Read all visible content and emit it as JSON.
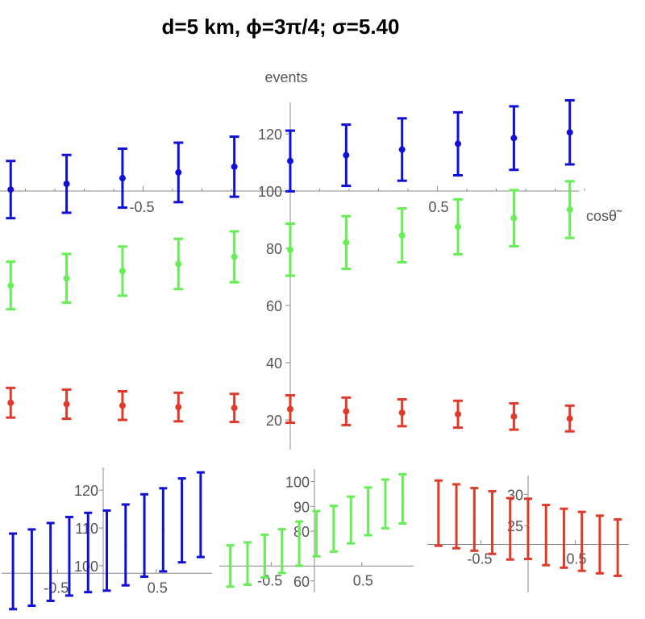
{
  "title": "d=5 km, ϕ=3π/4; σ=5.40",
  "chart_data": [
    {
      "type": "scatter",
      "title": "",
      "xlabel": "cosθ̃",
      "ylabel": "events",
      "xlim": [
        -1,
        1
      ],
      "ylim": [
        12,
        130
      ],
      "x_ticks": [
        -0.5,
        0.5
      ],
      "x_tick_labels": [
        "-0.5",
        "0.5"
      ],
      "y_ticks": [
        20,
        40,
        60,
        80,
        100,
        120
      ],
      "y_tick_labels": [
        "20",
        "40",
        "60",
        "80",
        "100",
        "120"
      ],
      "grid": false,
      "x": [
        -0.95,
        -0.76,
        -0.57,
        -0.38,
        -0.19,
        0.0,
        0.19,
        0.38,
        0.57,
        0.76,
        0.95
      ],
      "series": [
        {
          "color": "#1010d8",
          "values": [
            100.5,
            102.5,
            104.5,
            106.5,
            108.5,
            110.5,
            112.5,
            114.5,
            116.5,
            118.5,
            120.5
          ],
          "err": [
            10,
            10.1,
            10.3,
            10.4,
            10.5,
            10.6,
            10.7,
            10.9,
            11.0,
            11.1,
            11.2
          ]
        },
        {
          "color": "#66ee55",
          "values": [
            67,
            69.5,
            72,
            74.5,
            77,
            79.5,
            82,
            84.5,
            87.5,
            90.5,
            93.5
          ],
          "err": [
            8.3,
            8.5,
            8.6,
            8.8,
            8.9,
            9.1,
            9.2,
            9.4,
            9.6,
            9.8,
            9.9
          ]
        },
        {
          "color": "#e03a2a",
          "values": [
            26,
            25.5,
            25,
            24.5,
            24.2,
            23.8,
            23,
            22.5,
            22,
            21.2,
            20.5
          ],
          "err": [
            5.2,
            5.1,
            5.0,
            5.0,
            4.9,
            4.8,
            4.8,
            4.7,
            4.7,
            4.6,
            4.5
          ]
        }
      ]
    },
    {
      "type": "scatter",
      "title": "",
      "xlim": [
        -1,
        1
      ],
      "ylim": [
        94,
        126
      ],
      "x_ticks": [
        -0.5,
        0.5
      ],
      "x_tick_labels": [
        "-0.5",
        "0.5"
      ],
      "y_ticks": [
        100,
        110,
        120
      ],
      "y_tick_labels": [
        "100",
        "110",
        "120"
      ],
      "x_axis_at": 98,
      "grid": false,
      "color": "#1010d8",
      "x": [
        -0.95,
        -0.76,
        -0.57,
        -0.38,
        -0.19,
        0.0,
        0.19,
        0.38,
        0.57,
        0.76,
        0.95
      ],
      "values": [
        98.5,
        99.5,
        101,
        102.5,
        103.5,
        104,
        105.5,
        108,
        109.5,
        112,
        113.5
      ],
      "err": [
        10,
        10.1,
        10.3,
        10.4,
        10.5,
        10.6,
        10.7,
        10.9,
        11.0,
        11.1,
        11.2
      ]
    },
    {
      "type": "scatter",
      "title": "",
      "xlim": [
        -1,
        1
      ],
      "ylim": [
        57,
        105
      ],
      "x_ticks": [
        -0.5,
        0.5
      ],
      "x_tick_labels": [
        "-0.5",
        "0.5"
      ],
      "y_ticks": [
        60,
        80,
        90,
        100
      ],
      "y_tick_labels": [
        "60",
        "80",
        "90",
        "100"
      ],
      "x_axis_at": 66,
      "grid": false,
      "color": "#66ee55",
      "x": [
        -0.95,
        -0.76,
        -0.57,
        -0.38,
        -0.19,
        0.0,
        0.19,
        0.38,
        0.57,
        0.76,
        0.95
      ],
      "values": [
        66,
        67,
        70,
        72,
        75,
        79,
        81,
        84.5,
        88,
        91,
        93
      ],
      "err": [
        8.3,
        8.5,
        8.6,
        8.8,
        8.9,
        9.1,
        9.2,
        9.4,
        9.6,
        9.8,
        9.9
      ]
    },
    {
      "type": "scatter",
      "title": "",
      "xlim": [
        -1,
        1
      ],
      "ylim": [
        15,
        33
      ],
      "x_ticks": [
        -0.5,
        0.5
      ],
      "x_tick_labels": [
        "-0.5",
        "0.5"
      ],
      "y_ticks": [
        25,
        30
      ],
      "y_tick_labels": [
        "25",
        "30"
      ],
      "x_axis_at": 22,
      "grid": false,
      "color": "#e03a2a",
      "x": [
        -0.95,
        -0.76,
        -0.57,
        -0.38,
        -0.19,
        0.0,
        0.19,
        0.38,
        0.57,
        0.76,
        0.95
      ],
      "values": [
        27,
        26.5,
        26,
        25.5,
        24.5,
        24.5,
        23.5,
        23,
        22.5,
        22,
        21.5
      ],
      "err": [
        5.2,
        5.1,
        5.0,
        5.0,
        4.9,
        4.8,
        4.8,
        4.7,
        4.7,
        4.6,
        4.5
      ]
    }
  ]
}
